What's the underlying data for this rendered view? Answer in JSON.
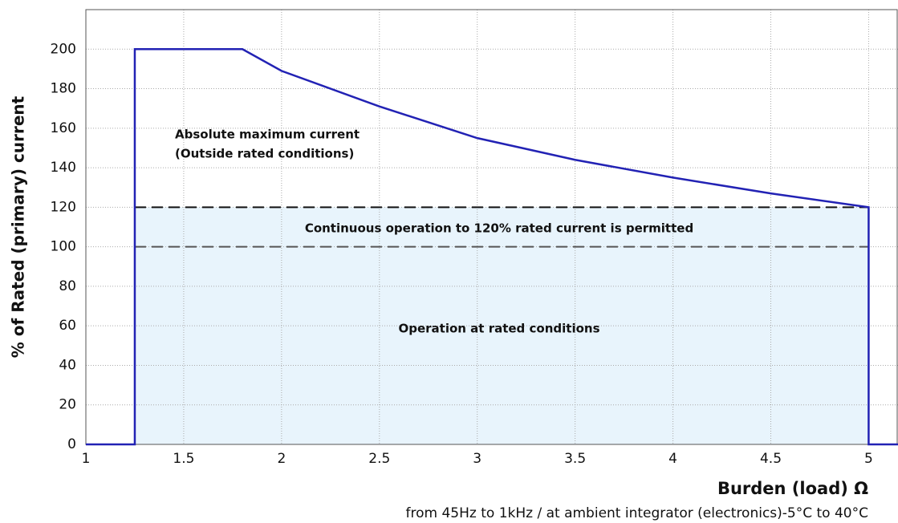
{
  "chart_data": {
    "type": "line",
    "y_label": "% of Rated (primary) current",
    "x_label": "Burden (load) Ω",
    "note": "from 45Hz to 1kHz / at ambient integrator (electronics)-5°C to 40°C",
    "annotations": [
      "Absolute maximum current",
      "(Outside rated conditions)",
      "Continuous operation to 120% rated current is permitted",
      "Operation at rated conditions"
    ],
    "x": [
      1,
      1.25,
      1.25,
      1.8,
      2,
      2.5,
      3,
      3.5,
      4,
      4.5,
      5,
      5,
      5.15
    ],
    "series": [
      {
        "color": "#2222b4",
        "values": [
          0,
          0,
          200,
          200,
          189,
          171,
          155,
          144,
          135,
          127,
          120,
          0,
          0
        ]
      }
    ],
    "region": {
      "x": [
        1.25,
        5
      ],
      "y": [
        0,
        120
      ],
      "color": "#e8f4fc"
    },
    "reference_lines": [
      {
        "y": 120,
        "x": [
          1.25,
          5
        ],
        "color": "#111111"
      },
      {
        "y": 100,
        "x": [
          1.25,
          5
        ],
        "color": "#555555"
      }
    ],
    "xlim": [
      1,
      5.15
    ],
    "ylim": [
      0,
      220
    ],
    "xticks": [
      1,
      1.5,
      2,
      2.5,
      3,
      3.5,
      4,
      4.5,
      5
    ],
    "yticks": [
      0,
      20,
      40,
      60,
      80,
      100,
      120,
      140,
      160,
      180,
      200
    ],
    "grid": true
  }
}
